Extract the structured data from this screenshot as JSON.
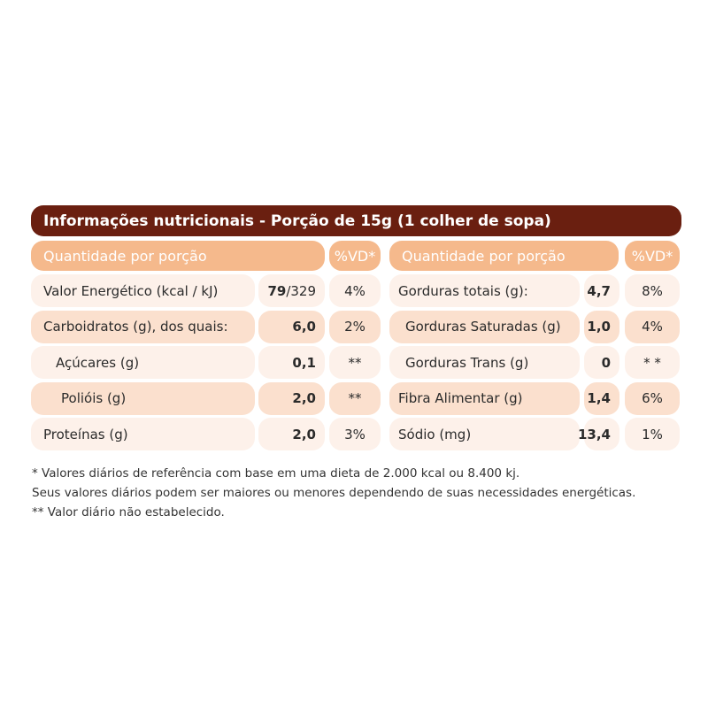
{
  "header": {
    "title": "Informações nutricionais - Porção de 15g (1 colher de sopa)"
  },
  "table": {
    "columns": {
      "left": {
        "quantity": "Quantidade por porção",
        "vd": "%VD*"
      },
      "right": {
        "quantity": "Quantidade por porção",
        "vd": "%VD*"
      }
    },
    "rows": [
      {
        "left": {
          "label": "Valor Energético (kcal / kJ)",
          "value": "79",
          "value_extra": "/329",
          "vd": "4%"
        },
        "right": {
          "label": "Gorduras totais (g):",
          "value": "4,7",
          "vd": "8%"
        }
      },
      {
        "left": {
          "label": "Carboidratos (g), dos quais:",
          "value": "6,0",
          "vd": "2%"
        },
        "right": {
          "label": "Gorduras Saturadas (g)",
          "value": "1,0",
          "vd": "4%"
        }
      },
      {
        "left": {
          "label": "Açúcares (g)",
          "value": "0,1",
          "vd": "**"
        },
        "right": {
          "label": "Gorduras Trans (g)",
          "value": "0",
          "vd": "* *"
        }
      },
      {
        "left": {
          "label": "Polióis (g)",
          "value": "2,0",
          "vd": "**"
        },
        "right": {
          "label": "Fibra Alimentar (g)",
          "value": "1,4",
          "vd": "6%"
        }
      },
      {
        "left": {
          "label": "Proteínas (g)",
          "value": "2,0",
          "vd": "3%"
        },
        "right": {
          "label": "Sódio (mg)",
          "value": "13,4",
          "vd": "1%"
        }
      }
    ]
  },
  "footnotes": [
    "* Valores diários de referência com base em uma dieta de 2.000 kcal ou 8.400 kj.",
    "Seus valores diários podem ser maiores ou menores dependendo de suas necessidades energéticas.",
    "** Valor diário não estabelecido."
  ]
}
